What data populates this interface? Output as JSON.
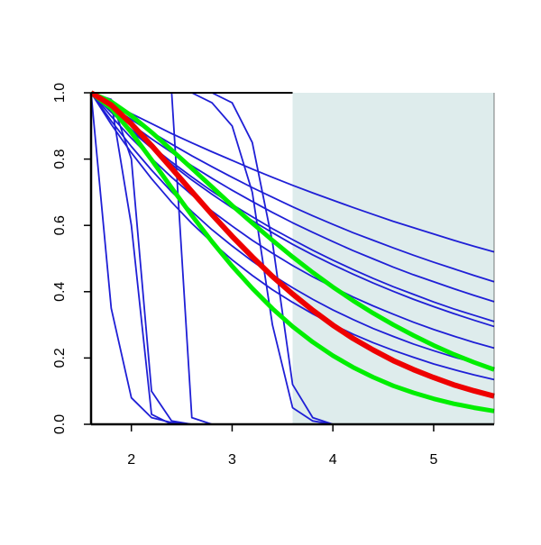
{
  "chart_data": {
    "type": "line",
    "x": [
      1.6,
      1.8,
      2.0,
      2.2,
      2.4,
      2.6,
      2.8,
      3.0,
      3.2,
      3.4,
      3.6,
      3.8,
      4.0,
      4.2,
      4.4,
      4.6,
      4.8,
      5.0,
      5.2,
      5.4,
      5.6
    ],
    "xlim": [
      1.6,
      5.6
    ],
    "ylim": [
      0,
      1
    ],
    "xticks": [
      2,
      3,
      4,
      5
    ],
    "yticks": [
      {
        "value": 0,
        "label": "0.0"
      },
      0.2,
      0.4,
      0.6,
      0.8,
      {
        "value": 1,
        "label": "1.0"
      }
    ],
    "shaded_region": {
      "xlim": [
        3.6,
        5.6
      ],
      "color": "#deecec"
    },
    "series": [
      {
        "color": "#1f1fd6",
        "linewidth": 1.8,
        "values": [
          1,
          0.968,
          0.937,
          0.907,
          0.877,
          0.849,
          0.822,
          0.796,
          0.77,
          0.745,
          0.721,
          0.698,
          0.676,
          0.654,
          0.633,
          0.612,
          0.593,
          0.574,
          0.555,
          0.537,
          0.52
        ]
      },
      {
        "color": "#1f1fd6",
        "linewidth": 1.8,
        "values": [
          1,
          0.959,
          0.919,
          0.881,
          0.845,
          0.81,
          0.777,
          0.745,
          0.714,
          0.685,
          0.656,
          0.629,
          0.603,
          0.578,
          0.555,
          0.532,
          0.51,
          0.489,
          0.469,
          0.449,
          0.43
        ]
      },
      {
        "color": "#1f1fd6",
        "linewidth": 1.8,
        "values": [
          1,
          0.952,
          0.905,
          0.861,
          0.82,
          0.78,
          0.742,
          0.706,
          0.672,
          0.639,
          0.608,
          0.579,
          0.551,
          0.524,
          0.499,
          0.474,
          0.451,
          0.43,
          0.409,
          0.389,
          0.37
        ]
      },
      {
        "color": "#1f1fd6",
        "linewidth": 1.8,
        "values": [
          1,
          0.943,
          0.889,
          0.839,
          0.791,
          0.746,
          0.703,
          0.663,
          0.626,
          0.59,
          0.557,
          0.525,
          0.495,
          0.467,
          0.44,
          0.415,
          0.392,
          0.369,
          0.348,
          0.329,
          0.31
        ]
      },
      {
        "color": "#1f1fd6",
        "linewidth": 1.8,
        "values": [
          1,
          0.941,
          0.885,
          0.833,
          0.784,
          0.737,
          0.694,
          0.653,
          0.614,
          0.578,
          0.543,
          0.511,
          0.481,
          0.453,
          0.426,
          0.401,
          0.377,
          0.355,
          0.334,
          0.314,
          0.295
        ]
      },
      {
        "color": "#1f1fd6",
        "linewidth": 1.8,
        "values": [
          1,
          0.929,
          0.863,
          0.802,
          0.745,
          0.692,
          0.643,
          0.598,
          0.555,
          0.516,
          0.479,
          0.445,
          0.414,
          0.384,
          0.357,
          0.332,
          0.308,
          0.286,
          0.266,
          0.247,
          0.23
        ]
      },
      {
        "color": "#1f1fd6",
        "linewidth": 1.8,
        "values": [
          1,
          0.915,
          0.838,
          0.767,
          0.701,
          0.642,
          0.587,
          0.538,
          0.492,
          0.45,
          0.412,
          0.377,
          0.345,
          0.316,
          0.289,
          0.265,
          0.242,
          0.222,
          0.203,
          0.186,
          0.17
        ]
      },
      {
        "color": "#1f1fd6",
        "linewidth": 1.8,
        "values": [
          1,
          0.905,
          0.819,
          0.741,
          0.67,
          0.606,
          0.549,
          0.496,
          0.449,
          0.406,
          0.368,
          0.333,
          0.301,
          0.272,
          0.246,
          0.223,
          0.202,
          0.182,
          0.165,
          0.149,
          0.135
        ]
      },
      {
        "color": "#1f1fd6",
        "linewidth": 1.8,
        "values": [
          1,
          0.35,
          0.08,
          0.02,
          0.005,
          0,
          0,
          0,
          0,
          0,
          0,
          0,
          0,
          0,
          0,
          0,
          0,
          0,
          0,
          0,
          0
        ]
      },
      {
        "color": "#1f1fd6",
        "linewidth": 1.8,
        "values": [
          1,
          0.97,
          0.6,
          0.03,
          0,
          0,
          0,
          0,
          0,
          0,
          0,
          0,
          0,
          0,
          0,
          0,
          0,
          0,
          0,
          0,
          0
        ]
      },
      {
        "color": "#1f1fd6",
        "linewidth": 1.8,
        "values": [
          1,
          0.98,
          0.8,
          0.1,
          0.01,
          0,
          0,
          0,
          0,
          0,
          0,
          0,
          0,
          0,
          0,
          0,
          0,
          0,
          0,
          0,
          0
        ]
      },
      {
        "color": "#1f1fd6",
        "linewidth": 1.8,
        "values": [
          1,
          1,
          1,
          1,
          1,
          0.02,
          0,
          0,
          0,
          0,
          0,
          0,
          0,
          0,
          0,
          0,
          0,
          0,
          0,
          0,
          0
        ]
      },
      {
        "color": "#1f1fd6",
        "linewidth": 1.8,
        "values": [
          1,
          1,
          1,
          1,
          1,
          1,
          0.97,
          0.9,
          0.7,
          0.3,
          0.05,
          0.01,
          0,
          0,
          0,
          0,
          0,
          0,
          0,
          0,
          0
        ]
      },
      {
        "color": "#1f1fd6",
        "linewidth": 1.8,
        "values": [
          1,
          1,
          1,
          1,
          1,
          1,
          1,
          0.97,
          0.85,
          0.55,
          0.12,
          0.02,
          0,
          0,
          0,
          0,
          0,
          0,
          0,
          0,
          0
        ]
      },
      {
        "color": "#00ee00",
        "linewidth": 5,
        "values": [
          1,
          0.973,
          0.931,
          0.881,
          0.827,
          0.772,
          0.716,
          0.66,
          0.607,
          0.555,
          0.505,
          0.458,
          0.414,
          0.373,
          0.335,
          0.3,
          0.268,
          0.238,
          0.211,
          0.187,
          0.165
        ]
      },
      {
        "color": "#00ee00",
        "linewidth": 5,
        "values": [
          1,
          0.953,
          0.88,
          0.798,
          0.713,
          0.63,
          0.551,
          0.477,
          0.41,
          0.349,
          0.295,
          0.248,
          0.207,
          0.172,
          0.142,
          0.116,
          0.095,
          0.077,
          0.062,
          0.05,
          0.04
        ]
      },
      {
        "color": "#ee0000",
        "linewidth": 6,
        "values": [
          1,
          0.963,
          0.906,
          0.841,
          0.772,
          0.702,
          0.633,
          0.567,
          0.505,
          0.446,
          0.393,
          0.344,
          0.299,
          0.259,
          0.224,
          0.192,
          0.165,
          0.141,
          0.119,
          0.101,
          0.085
        ]
      }
    ]
  }
}
